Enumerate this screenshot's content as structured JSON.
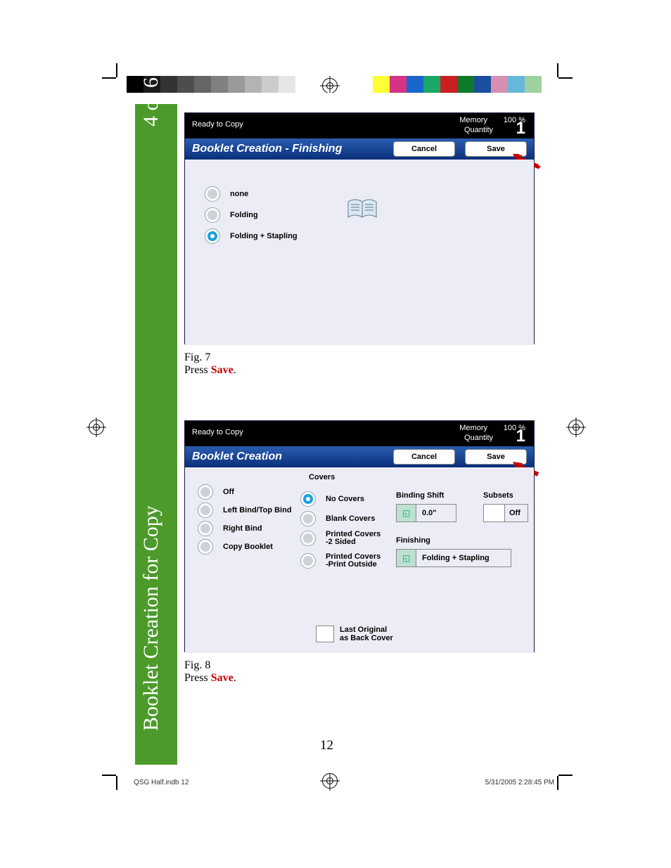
{
  "sidebar": {
    "page_of": "4 of 6",
    "title": "Booklet Creation for Copy"
  },
  "grey_swatches": [
    "#000000",
    "#1a1a1a",
    "#333333",
    "#4d4d4d",
    "#666666",
    "#808080",
    "#999999",
    "#b3b3b3",
    "#cccccc",
    "#e6e6e6"
  ],
  "color_swatches": [
    "#ffff33",
    "#d63384",
    "#1a66cc",
    "#19a866",
    "#c82020",
    "#0f7a2a",
    "#1a4fa0",
    "#d68fb0",
    "#67b7dc",
    "#9fd19f"
  ],
  "screens": {
    "s1": {
      "ready": "Ready to Copy",
      "memory_label": "Memory",
      "memory_value": "100 %",
      "quantity_label": "Quantity",
      "quantity_value": "1",
      "title": "Booklet Creation - Finishing",
      "cancel": "Cancel",
      "save": "Save",
      "options": [
        {
          "label": "none",
          "selected": false
        },
        {
          "label": "Folding",
          "selected": false
        },
        {
          "label": "Folding + Stapling",
          "selected": true
        }
      ]
    },
    "s2": {
      "ready": "Ready to Copy",
      "memory_label": "Memory",
      "memory_value": "100 %",
      "quantity_label": "Quantity",
      "quantity_value": "1",
      "title": "Booklet Creation",
      "cancel": "Cancel",
      "save": "Save",
      "col1": [
        {
          "label": "Off"
        },
        {
          "label": "Left Bind/Top Bind"
        },
        {
          "label": "Right Bind"
        },
        {
          "label": "Copy Booklet"
        }
      ],
      "covers_header": "Covers",
      "col2": [
        {
          "label": "No Covers",
          "selected": true
        },
        {
          "label": "Blank Covers"
        },
        {
          "label": "Printed Covers\n-2 Sided",
          "multiline": true
        },
        {
          "label": "Printed Covers\n-Print Outside",
          "multiline": true
        }
      ],
      "binding_shift_label": "Binding Shift",
      "binding_shift_value": "0.0\"",
      "finishing_label": "Finishing",
      "finishing_value": "Folding + Stapling",
      "subsets_label": "Subsets",
      "subsets_value": "Off",
      "last_original": "Last Original\nas Back Cover"
    }
  },
  "captions": {
    "fig7": {
      "fig": "Fig. 7",
      "press": "Press ",
      "save": "Save",
      "dot": "."
    },
    "fig8": {
      "fig": "Fig. 8",
      "press": "Press ",
      "save": "Save",
      "dot": "."
    }
  },
  "page_number": "12",
  "footer": {
    "left": "QSG Half.indb   12",
    "right": "5/31/2005   2:28:45 PM"
  },
  "colors": {
    "sidebar_green": "#4c9a2a",
    "header_blue_top": "#2a5db0",
    "header_blue_bot": "#0a2f7a",
    "body_grey": "#ececf6",
    "radio_selected_ring": "#1aa0e0",
    "save_red": "#c00000",
    "arrow_red": "#c00000"
  }
}
